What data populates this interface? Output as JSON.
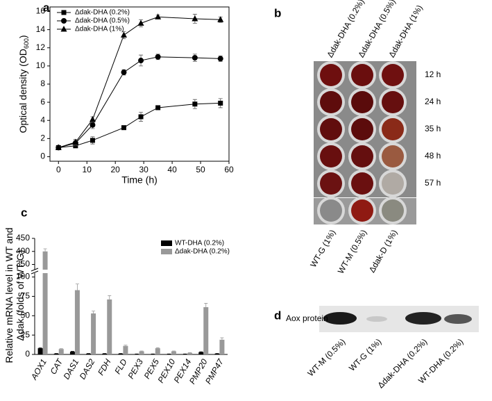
{
  "panel_labels": [
    "a",
    "b",
    "c",
    "d"
  ],
  "chart_data": [
    {
      "type": "line",
      "xlabel": "Time (h)",
      "ylabel": [
        "Optical density (OD",
        "600",
        ")"
      ],
      "x": [
        0,
        6,
        12,
        23,
        29,
        35,
        48,
        57
      ],
      "xlim": [
        -3,
        60
      ],
      "xticks": [
        0,
        10,
        20,
        30,
        40,
        50,
        60
      ],
      "ylim": [
        -0.5,
        16.5
      ],
      "yticks": [
        0,
        2,
        4,
        6,
        8,
        10,
        12,
        14,
        16
      ],
      "legend_position": "upper left",
      "series": [
        {
          "name": "Δdak-DHA (0.2%)",
          "color": "#000000",
          "marker": "square",
          "values": [
            1.0,
            1.2,
            1.8,
            3.2,
            4.4,
            5.4,
            5.8,
            5.9
          ],
          "errors": [
            0.1,
            0.2,
            0.4,
            0.2,
            0.5,
            0.2,
            0.5,
            0.5
          ]
        },
        {
          "name": "Δdak-DHA (0.5%)",
          "color": "#000000",
          "marker": "circle",
          "values": [
            1.0,
            1.5,
            3.5,
            9.3,
            10.6,
            11.0,
            10.9,
            10.8
          ],
          "errors": [
            0.1,
            0.3,
            0.4,
            0.3,
            0.6,
            0.3,
            0.4,
            0.3
          ]
        },
        {
          "name": "Δdak-DHA (1%)",
          "color": "#000000",
          "marker": "triangle",
          "values": [
            1.0,
            1.6,
            4.1,
            13.4,
            14.7,
            15.4,
            15.2,
            15.1
          ],
          "errors": [
            0.1,
            0.3,
            0.3,
            0.4,
            0.4,
            0.2,
            0.5,
            0.3
          ]
        }
      ]
    },
    {
      "type": "bar",
      "ylabel": [
        "Relative mRNA level in WT and",
        "Δdak (folds of WT-G)"
      ],
      "categories": [
        "AOX1",
        "CAT",
        "DAS1",
        "DAS2",
        "FDH",
        "FLD",
        "PEX3",
        "PEX5",
        "PEX10",
        "PEX14",
        "PMP20",
        "PMP47"
      ],
      "ylim": [
        0,
        450
      ],
      "axis_break": [
        105,
        330
      ],
      "yticks": [
        0,
        25,
        50,
        75,
        100,
        350,
        400,
        450
      ],
      "legend_position": "upper right",
      "series": [
        {
          "name": "WT-DHA (0.2%)",
          "color": "#000000",
          "values": [
            8,
            1,
            3.5,
            1,
            1,
            1,
            0.5,
            0.5,
            0.5,
            0.5,
            3,
            1
          ],
          "errors": [
            0.5,
            0.2,
            0.5,
            0.2,
            0.2,
            0.2,
            0.1,
            0.1,
            0.1,
            0.1,
            0.5,
            0.2
          ]
        },
        {
          "name": "Δdak-DHA (0.2%)",
          "color": "#999999",
          "values": [
            400,
            7,
            83,
            53,
            71,
            11,
            4,
            8,
            4,
            2,
            61,
            19
          ],
          "errors": [
            10,
            0.5,
            8,
            3,
            5,
            1,
            0.5,
            0.7,
            0.5,
            0.3,
            5,
            2.5
          ]
        }
      ]
    }
  ],
  "plate": {
    "columns": [
      "Δdak-DHA (0.2%)",
      "Δdak-DHA (0.5%)",
      "Δdak-DHA (1%)"
    ],
    "rows": [
      "12 h",
      "24 h",
      "35 h",
      "48 h",
      "57 h"
    ],
    "controls": [
      "WT-G (1%)",
      "WT-M (0.5%)",
      "Δdak-D (1%)"
    ]
  },
  "blot": {
    "label": "Aox protein",
    "lanes": [
      "WT-M (0.5%)",
      "WT-G (1%)",
      "Δdak-DHA (0.2%)",
      "WT-DHA (0.2%)"
    ]
  }
}
